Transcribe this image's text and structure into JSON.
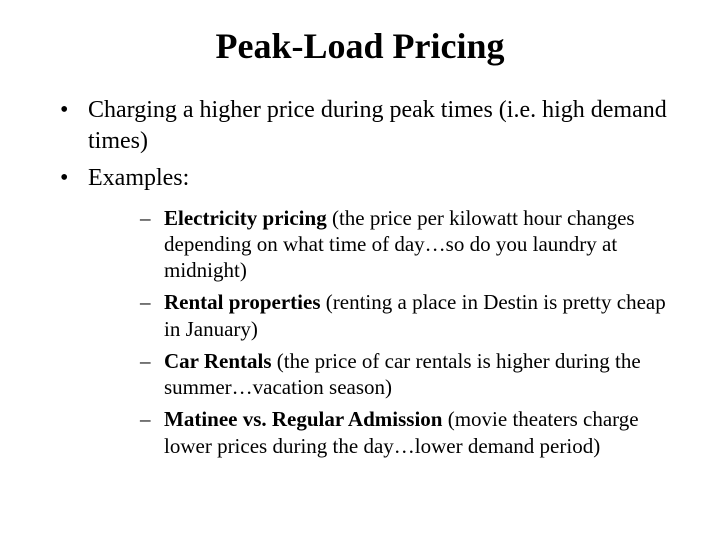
{
  "slide": {
    "title": "Peak-Load Pricing",
    "background_color": "#ffffff",
    "text_color": "#000000",
    "font_family": "Times New Roman",
    "title_fontsize": 36,
    "level1_fontsize": 24,
    "level2_fontsize": 21,
    "bullets_level1": [
      {
        "text": "Charging a higher price during peak times (i.e. high demand times)"
      },
      {
        "text": "Examples:",
        "sub": [
          {
            "bold": "Electricity pricing",
            "rest": " (the price per kilowatt hour changes depending on what time of day…so do you laundry at midnight)"
          },
          {
            "bold": "Rental properties",
            "rest": " (renting a place in Destin is pretty cheap in January)"
          },
          {
            "bold": "Car Rentals",
            "rest": " (the price of car rentals is higher during the summer…vacation season)"
          },
          {
            "bold": "Matinee vs. Regular Admission",
            "rest": " (movie theaters charge lower prices during the day…lower demand period)"
          }
        ]
      }
    ]
  }
}
